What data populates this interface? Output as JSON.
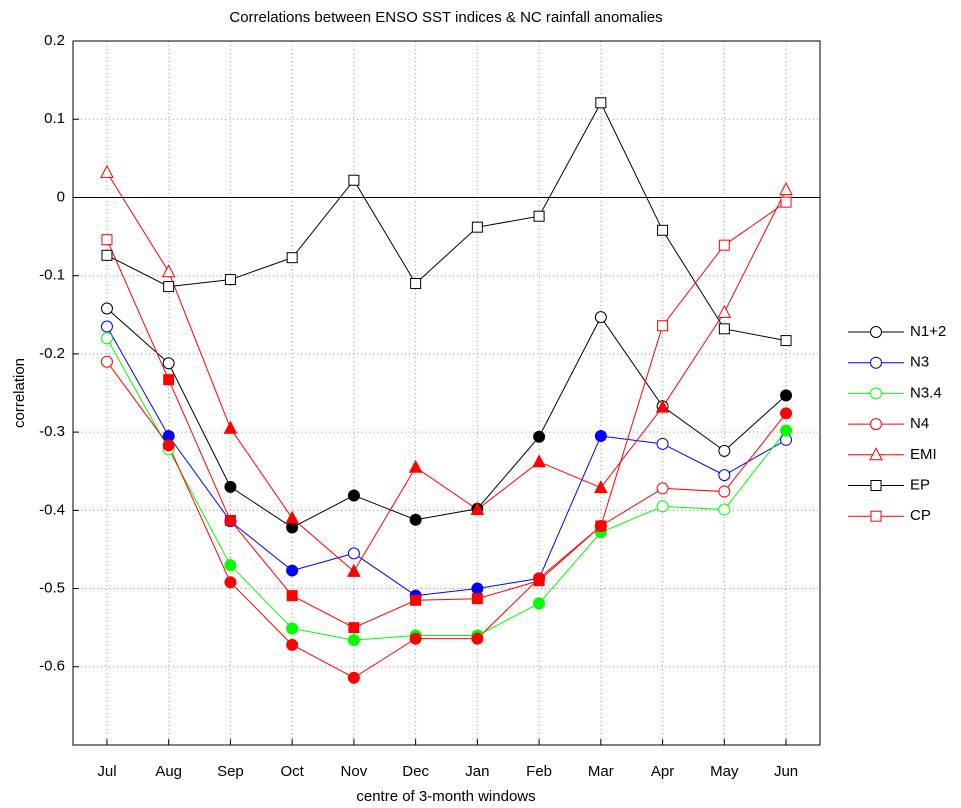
{
  "chart_data": {
    "type": "line",
    "title": "Correlations between ENSO SST indices & NC rainfall anomalies",
    "x_label": "centre of 3-month windows",
    "y_label": "correlation",
    "categories": [
      "Jul",
      "Aug",
      "Sep",
      "Oct",
      "Nov",
      "Dec",
      "Jan",
      "Feb",
      "Mar",
      "Apr",
      "May",
      "Jun"
    ],
    "ylim": [
      -0.7,
      0.2
    ],
    "yticks": [
      -0.6,
      -0.5,
      -0.4,
      -0.3,
      -0.2,
      -0.1,
      0,
      0.1,
      0.2
    ],
    "grid": true,
    "legend": "outside right",
    "series": [
      {
        "name": "N1+2",
        "color": "#000000",
        "marker": "circle",
        "values": [
          -0.142,
          -0.212,
          -0.37,
          -0.422,
          -0.381,
          -0.412,
          -0.398,
          -0.306,
          -0.153,
          -0.267,
          -0.324,
          -0.253
        ],
        "filled": [
          false,
          false,
          true,
          true,
          true,
          true,
          true,
          true,
          false,
          false,
          false,
          true
        ]
      },
      {
        "name": "N3",
        "color": "#0000ff",
        "marker": "circle",
        "values": [
          -0.165,
          -0.305,
          -0.414,
          -0.477,
          -0.455,
          -0.509,
          -0.5,
          -0.487,
          -0.305,
          -0.315,
          -0.355,
          -0.31
        ],
        "filled": [
          false,
          true,
          false,
          true,
          false,
          true,
          true,
          true,
          true,
          false,
          false,
          false
        ]
      },
      {
        "name": "N3.4",
        "color": "#00ff00",
        "marker": "circle",
        "values": [
          -0.18,
          -0.322,
          -0.47,
          -0.551,
          -0.566,
          -0.56,
          -0.56,
          -0.519,
          -0.428,
          -0.395,
          -0.399,
          -0.298
        ],
        "filled": [
          false,
          false,
          true,
          true,
          true,
          true,
          true,
          true,
          true,
          false,
          false,
          true
        ]
      },
      {
        "name": "N4",
        "color": "#ff0000",
        "marker": "circle",
        "values": [
          -0.21,
          -0.317,
          -0.492,
          -0.572,
          -0.614,
          -0.564,
          -0.564,
          -0.487,
          -0.42,
          -0.372,
          -0.376,
          -0.276
        ],
        "filled": [
          false,
          true,
          true,
          true,
          true,
          true,
          true,
          true,
          true,
          false,
          false,
          true
        ]
      },
      {
        "name": "EMI",
        "color": "#ff0000",
        "marker": "triangle",
        "values": [
          0.032,
          -0.095,
          -0.295,
          -0.41,
          -0.478,
          -0.345,
          -0.399,
          -0.338,
          -0.371,
          -0.268,
          -0.147,
          0.01
        ],
        "filled": [
          false,
          false,
          true,
          true,
          true,
          true,
          true,
          true,
          true,
          true,
          false,
          false
        ]
      },
      {
        "name": "EP",
        "color": "#000000",
        "marker": "square",
        "values": [
          -0.074,
          -0.114,
          -0.105,
          -0.077,
          0.022,
          -0.11,
          -0.038,
          -0.024,
          0.121,
          -0.042,
          -0.168,
          -0.183
        ],
        "filled": [
          false,
          false,
          false,
          false,
          false,
          false,
          false,
          false,
          false,
          false,
          false,
          false
        ]
      },
      {
        "name": "CP",
        "color": "#ff0000",
        "marker": "square",
        "values": [
          -0.054,
          -0.233,
          -0.413,
          -0.509,
          -0.55,
          -0.515,
          -0.513,
          -0.49,
          -0.42,
          -0.164,
          -0.061,
          -0.006
        ],
        "filled": [
          false,
          true,
          true,
          true,
          true,
          true,
          true,
          true,
          true,
          false,
          false,
          false
        ]
      }
    ]
  }
}
